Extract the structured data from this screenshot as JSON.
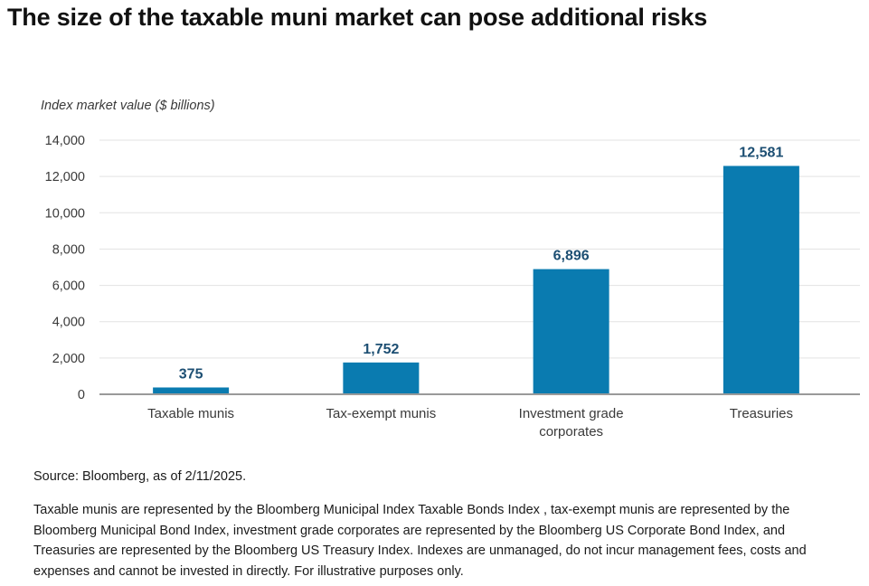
{
  "title": "The size of the taxable muni market can pose additional risks",
  "source": "Source: Bloomberg, as of 2/11/2025.",
  "notes": "Taxable munis are represented by the Bloomberg Municipal Index Taxable Bonds Index , tax-exempt munis are represented by the Bloomberg Municipal Bond Index, investment grade corporates are represented by the Bloomberg US Corporate Bond Index, and Treasuries are represented by the Bloomberg US Treasury Index. Indexes are unmanaged, do not incur management fees, costs and expenses and cannot be invested in directly. For illustrative purposes only.",
  "notes_link": " ",
  "colors": {
    "bar": "#0a7bb0",
    "data_label": "#1d4f73",
    "axis_text": "#3a3a3a",
    "gridline": "#e3e3e3",
    "baseline": "#9a9a9a"
  },
  "chart_data": {
    "type": "bar",
    "title": "",
    "ylabel": "Index market value ($ billions)",
    "xlabel": "",
    "categories": [
      "Taxable munis",
      "Tax-exempt munis",
      "Investment grade corporates",
      "Treasuries"
    ],
    "values": [
      375,
      1752,
      6896,
      12581
    ],
    "data_labels": [
      "375",
      "1,752",
      "6,896",
      "12,581"
    ],
    "ylim": [
      0,
      14000
    ],
    "yticks": [
      0,
      2000,
      4000,
      6000,
      8000,
      10000,
      12000,
      14000
    ],
    "ytick_labels": [
      "0",
      "2,000",
      "4,000",
      "6,000",
      "8,000",
      "10,000",
      "12,000",
      "14,000"
    ],
    "grid": true,
    "legend": "none"
  }
}
